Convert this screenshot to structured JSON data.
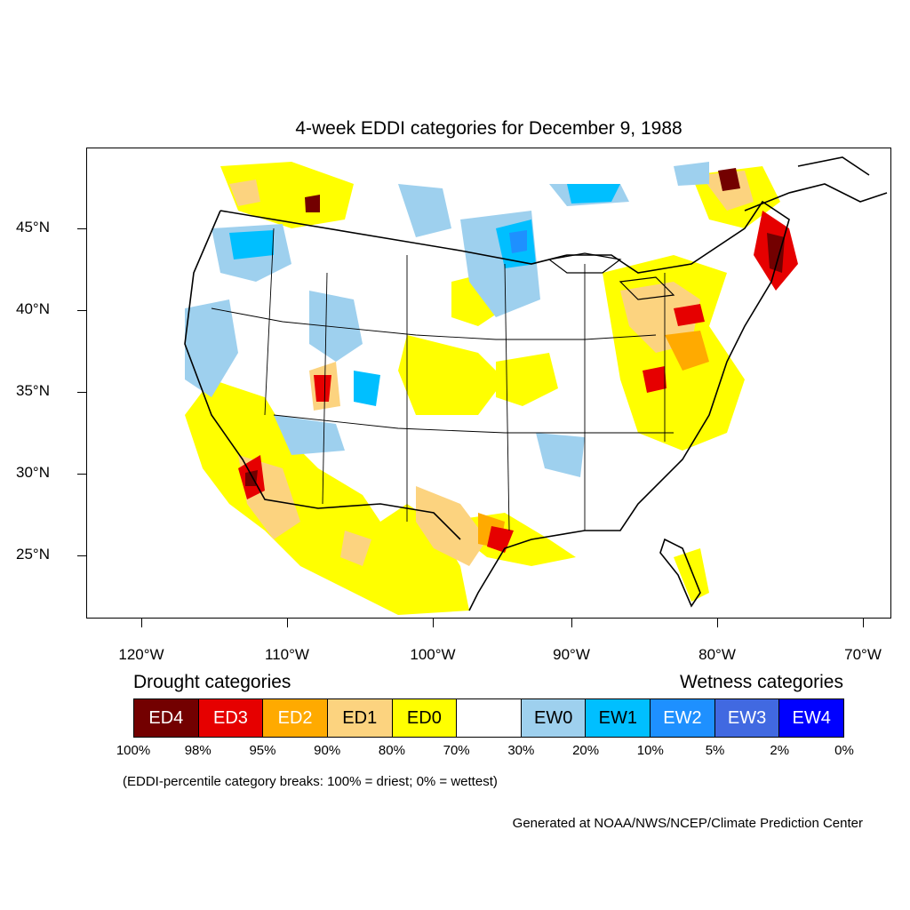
{
  "title": "4-week EDDI categories for December 9, 1988",
  "lat_labels": [
    "45°N",
    "40°N",
    "35°N",
    "30°N",
    "25°N"
  ],
  "lon_labels": [
    "120°W",
    "110°W",
    "100°W",
    "90°W",
    "80°W",
    "70°W"
  ],
  "legend": {
    "drought_heading": "Drought categories",
    "wetness_heading": "Wetness categories",
    "categories": [
      {
        "label": "ED4",
        "color": "#730000",
        "text_color": "#ffffff"
      },
      {
        "label": "ED3",
        "color": "#e60000",
        "text_color": "#ffffff"
      },
      {
        "label": "ED2",
        "color": "#ffaa00",
        "text_color": "#ffffff"
      },
      {
        "label": "ED1",
        "color": "#fcd37f",
        "text_color": "#000000"
      },
      {
        "label": "ED0",
        "color": "#ffff00",
        "text_color": "#000000"
      },
      {
        "label": "",
        "color": "#ffffff",
        "text_color": "#000000"
      },
      {
        "label": "EW0",
        "color": "#9ed0ee",
        "text_color": "#000000"
      },
      {
        "label": "EW1",
        "color": "#00bfff",
        "text_color": "#000000"
      },
      {
        "label": "EW2",
        "color": "#1e90ff",
        "text_color": "#ffffff"
      },
      {
        "label": "EW3",
        "color": "#4169e1",
        "text_color": "#ffffff"
      },
      {
        "label": "EW4",
        "color": "#0000ff",
        "text_color": "#ffffff"
      }
    ],
    "percent_breaks": [
      "100%",
      "98%",
      "95%",
      "90%",
      "80%",
      "70%",
      "30%",
      "20%",
      "10%",
      "5%",
      "2%",
      "0%"
    ]
  },
  "note": "(EDDI-percentile category breaks: 100% = driest; 0% = wettest)",
  "credit": "Generated at NOAA/NWS/NCEP/Climate Prediction Center"
}
